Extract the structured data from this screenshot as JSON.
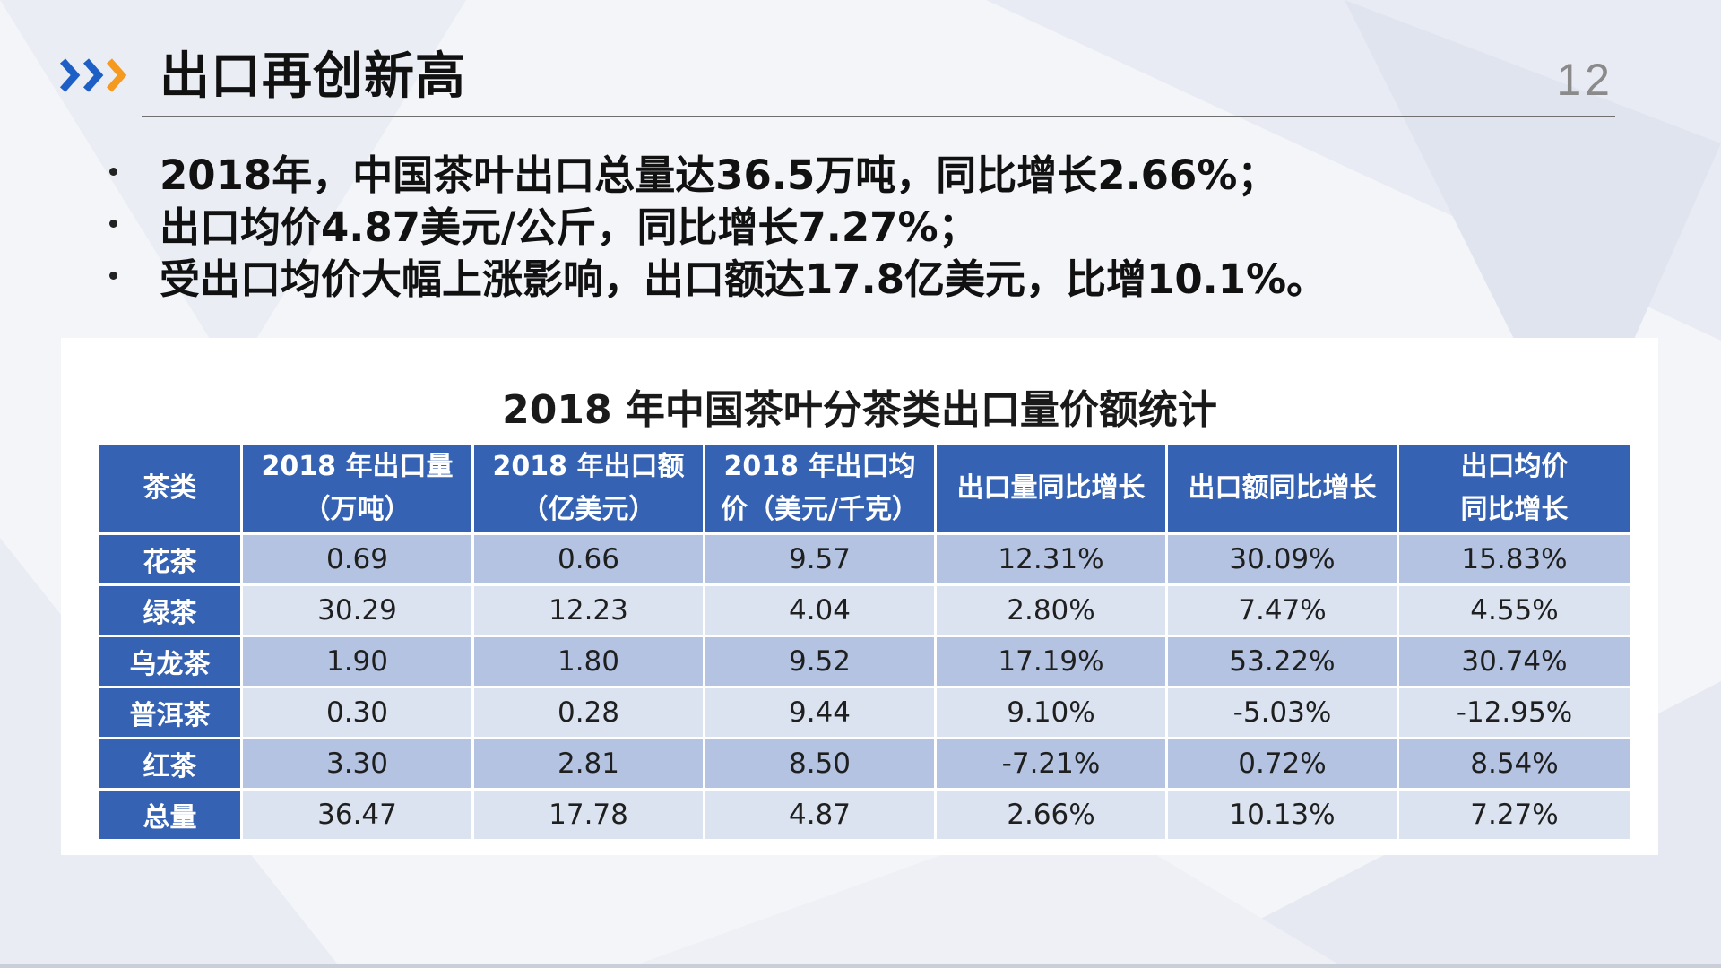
{
  "header": {
    "title": "出口再创新高",
    "page_number": "12"
  },
  "bullets": [
    "2018年，中国茶叶出口总量达36.5万吨，同比增长2.66%；",
    "出口均价4.87美元/公斤，同比增长7.27%；",
    "受出口均价大幅上涨影响，出口额达17.8亿美元，比增10.1%。"
  ],
  "table": {
    "caption": "2018 年中国茶叶分茶类出口量价额统计",
    "columns": [
      [
        "茶类"
      ],
      [
        "2018 年出口量",
        "（万吨）"
      ],
      [
        "2018 年出口额",
        "（亿美元）"
      ],
      [
        "2018 年出口均",
        "价（美元/千克）"
      ],
      [
        "出口量同比增长"
      ],
      [
        "出口额同比增长"
      ],
      [
        "出口均价",
        "同比增长"
      ]
    ],
    "rows": [
      [
        "花茶",
        "0.69",
        "0.66",
        "9.57",
        "12.31%",
        "30.09%",
        "15.83%"
      ],
      [
        "绿茶",
        "30.29",
        "12.23",
        "4.04",
        "2.80%",
        "7.47%",
        "4.55%"
      ],
      [
        "乌龙茶",
        "1.90",
        "1.80",
        "9.52",
        "17.19%",
        "53.22%",
        "30.74%"
      ],
      [
        "普洱茶",
        "0.30",
        "0.28",
        "9.44",
        "9.10%",
        "-5.03%",
        "-12.95%"
      ],
      [
        "红茶",
        "3.30",
        "2.81",
        "8.50",
        "-7.21%",
        "0.72%",
        "8.54%"
      ],
      [
        "总量",
        "36.47",
        "17.78",
        "4.87",
        "2.66%",
        "10.13%",
        "7.27%"
      ]
    ]
  },
  "colors": {
    "chevron_blue": "#1d5fc4",
    "chevron_orange": "#f59a1f",
    "table_header": "#3562b3",
    "row_dark": "#b3c3e1",
    "row_light": "#dbe3f1"
  },
  "icons": {
    "header_icon": "triple-chevron-right-icon"
  }
}
